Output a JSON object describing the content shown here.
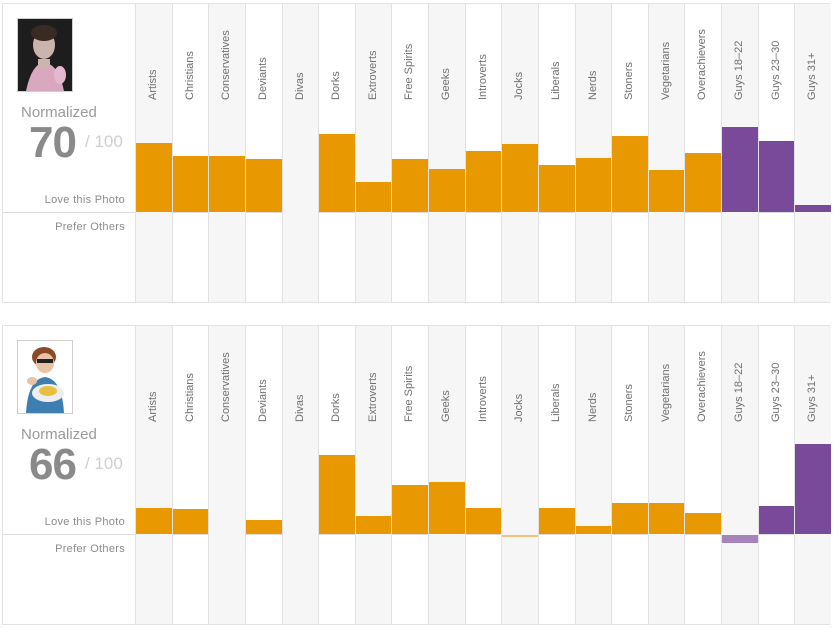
{
  "colors": {
    "orange": "#e89800",
    "purple": "#7a4a9a",
    "orange_light": "#f3c27a",
    "purple_light": "#a583bb"
  },
  "labels": {
    "normalized": "Normalized",
    "out_of": "/ 100",
    "love": "Love this Photo",
    "prefer": "Prefer Others"
  },
  "chart_data": [
    {
      "type": "bar",
      "score": "70",
      "photo_icon": "woman-portrait-dark-photo",
      "categories": [
        "Artists",
        "Christians",
        "Conservatives",
        "Deviants",
        "Divas",
        "Dorks",
        "Extroverts",
        "Free Spirits",
        "Geeks",
        "Introverts",
        "Jocks",
        "Liberals",
        "Nerds",
        "Stoners",
        "Vegetarians",
        "Overachievers",
        "Guys 18–22",
        "Guys 23–30",
        "Guys 31+"
      ],
      "values": [
        69,
        56,
        56,
        53,
        0,
        78,
        30,
        53,
        43,
        61,
        68,
        47,
        54,
        76,
        42,
        59,
        85,
        71,
        7
      ],
      "groups": [
        "orange",
        "orange",
        "orange",
        "orange",
        "orange",
        "orange",
        "orange",
        "orange",
        "orange",
        "orange",
        "orange",
        "orange",
        "orange",
        "orange",
        "orange",
        "orange",
        "purple",
        "purple",
        "purple"
      ],
      "ylim": [
        -100,
        100
      ]
    },
    {
      "type": "bar",
      "score": "66",
      "photo_icon": "woman-eating-photo",
      "categories": [
        "Artists",
        "Christians",
        "Conservatives",
        "Deviants",
        "Divas",
        "Dorks",
        "Extroverts",
        "Free Spirits",
        "Geeks",
        "Introverts",
        "Jocks",
        "Liberals",
        "Nerds",
        "Stoners",
        "Vegetarians",
        "Overachievers",
        "Guys 18–22",
        "Guys 23–30",
        "Guys 31+"
      ],
      "values": [
        26,
        25,
        0,
        14,
        0,
        79,
        18,
        49,
        52,
        26,
        -2,
        26,
        8,
        31,
        31,
        21,
        -8,
        28,
        90
      ],
      "groups": [
        "orange",
        "orange",
        "orange",
        "orange",
        "orange",
        "orange",
        "orange",
        "orange",
        "orange",
        "orange",
        "orange",
        "orange",
        "orange",
        "orange",
        "orange",
        "orange",
        "purple",
        "purple",
        "purple"
      ],
      "ylim": [
        -100,
        100
      ]
    }
  ]
}
